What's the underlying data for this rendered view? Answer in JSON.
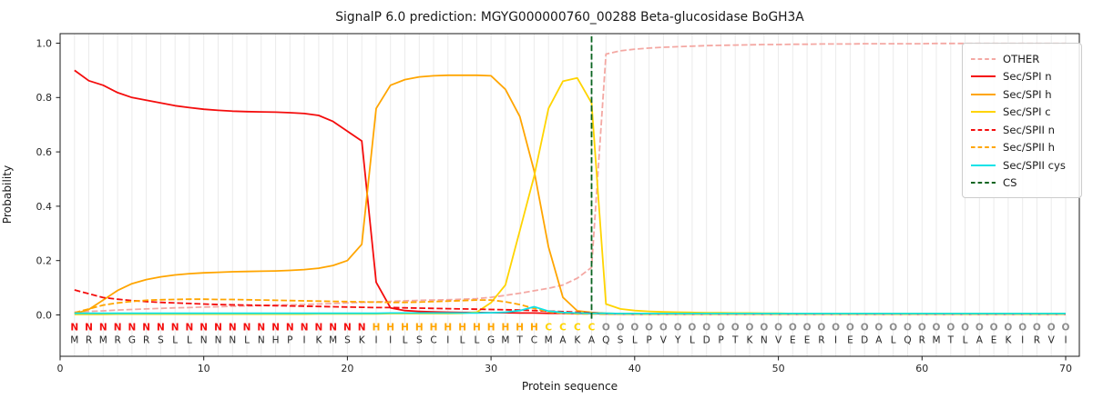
{
  "chart_data": {
    "type": "line",
    "title": "SignalP 6.0 prediction: MGYG000000760_00288 Beta-glucosidase BoGH3A",
    "xlabel": "Protein sequence",
    "ylabel": "Probability",
    "xticks": [
      0,
      10,
      20,
      30,
      40,
      50,
      60,
      70
    ],
    "ytick_labels": [
      "0.0",
      "0.2",
      "0.4",
      "0.6",
      "0.8",
      "1.0"
    ],
    "ytick_values": [
      0.0,
      0.2,
      0.4,
      0.6,
      0.8,
      1.0
    ],
    "xlim": [
      0,
      71
    ],
    "ylim": [
      -0.15,
      1.03
    ],
    "grid": "vertical-per-residue",
    "legend_position": "upper right",
    "x": "positions 1-70",
    "series": [
      {
        "name": "OTHER",
        "color": "#f4a8a3",
        "dash": "dashed",
        "values": [
          0.01,
          0.013,
          0.015,
          0.018,
          0.02,
          0.022,
          0.024,
          0.026,
          0.027,
          0.029,
          0.03,
          0.032,
          0.033,
          0.034,
          0.036,
          0.037,
          0.038,
          0.04,
          0.042,
          0.044,
          0.046,
          0.048,
          0.05,
          0.052,
          0.054,
          0.055,
          0.056,
          0.058,
          0.06,
          0.065,
          0.072,
          0.08,
          0.089,
          0.098,
          0.11,
          0.135,
          0.175,
          0.96,
          0.972,
          0.978,
          0.982,
          0.985,
          0.987,
          0.989,
          0.991,
          0.992,
          0.993,
          0.994,
          0.995,
          0.995,
          0.996,
          0.996,
          0.997,
          0.997,
          0.997,
          0.998,
          0.998,
          0.998,
          0.998,
          0.998,
          0.999,
          0.999,
          0.999,
          0.999,
          0.999,
          0.999,
          0.999,
          0.999,
          0.999,
          0.999
        ]
      },
      {
        "name": "Sec/SPI n",
        "color": "#f40d0d",
        "dash": "solid",
        "values": [
          0.9,
          0.862,
          0.845,
          0.818,
          0.8,
          0.79,
          0.78,
          0.77,
          0.763,
          0.757,
          0.753,
          0.75,
          0.748,
          0.747,
          0.746,
          0.744,
          0.741,
          0.734,
          0.712,
          0.676,
          0.64,
          0.12,
          0.026,
          0.016,
          0.013,
          0.011,
          0.01,
          0.009,
          0.009,
          0.008,
          0.008,
          0.007,
          0.007,
          0.006,
          0.006,
          0.005,
          0.005,
          0.004,
          0.004,
          0.003,
          0.003,
          0.003,
          0.003,
          0.003,
          0.003,
          0.003,
          0.003,
          0.003,
          0.003,
          0.003,
          0.003,
          0.003,
          0.003,
          0.003,
          0.003,
          0.003,
          0.003,
          0.003,
          0.003,
          0.003,
          0.003,
          0.003,
          0.003,
          0.003,
          0.003,
          0.003,
          0.003,
          0.003,
          0.003,
          0.003
        ]
      },
      {
        "name": "Sec/SPI h",
        "color": "#ffa500",
        "dash": "solid",
        "values": [
          0.004,
          0.02,
          0.055,
          0.09,
          0.115,
          0.13,
          0.14,
          0.147,
          0.152,
          0.155,
          0.157,
          0.159,
          0.16,
          0.161,
          0.162,
          0.164,
          0.167,
          0.172,
          0.182,
          0.2,
          0.26,
          0.76,
          0.845,
          0.866,
          0.876,
          0.88,
          0.882,
          0.882,
          0.882,
          0.88,
          0.83,
          0.73,
          0.53,
          0.25,
          0.065,
          0.015,
          0.009,
          0.006,
          0.005,
          0.005,
          0.004,
          0.004,
          0.004,
          0.004,
          0.004,
          0.004,
          0.004,
          0.004,
          0.004,
          0.004,
          0.004,
          0.004,
          0.004,
          0.004,
          0.004,
          0.004,
          0.004,
          0.004,
          0.004,
          0.004,
          0.004,
          0.004,
          0.004,
          0.004,
          0.004,
          0.004,
          0.004,
          0.004,
          0.004,
          0.004
        ]
      },
      {
        "name": "Sec/SPI c",
        "color": "#ffd400",
        "dash": "solid",
        "values": [
          0.002,
          0.002,
          0.002,
          0.003,
          0.003,
          0.003,
          0.003,
          0.003,
          0.003,
          0.003,
          0.003,
          0.003,
          0.003,
          0.003,
          0.003,
          0.003,
          0.003,
          0.004,
          0.004,
          0.004,
          0.004,
          0.004,
          0.005,
          0.005,
          0.005,
          0.005,
          0.005,
          0.006,
          0.01,
          0.045,
          0.11,
          0.31,
          0.51,
          0.76,
          0.86,
          0.872,
          0.78,
          0.04,
          0.022,
          0.016,
          0.013,
          0.011,
          0.01,
          0.009,
          0.008,
          0.008,
          0.007,
          0.007,
          0.006,
          0.006,
          0.005,
          0.005,
          0.005,
          0.005,
          0.005,
          0.005,
          0.005,
          0.005,
          0.005,
          0.005,
          0.005,
          0.005,
          0.005,
          0.005,
          0.005,
          0.005,
          0.005,
          0.005,
          0.005,
          0.005
        ]
      },
      {
        "name": "Sec/SPII n",
        "color": "#f40d0d",
        "dash": "dashed",
        "values": [
          0.092,
          0.078,
          0.064,
          0.058,
          0.053,
          0.049,
          0.046,
          0.044,
          0.042,
          0.04,
          0.038,
          0.037,
          0.036,
          0.035,
          0.034,
          0.033,
          0.032,
          0.031,
          0.03,
          0.029,
          0.028,
          0.027,
          0.027,
          0.026,
          0.025,
          0.024,
          0.023,
          0.022,
          0.021,
          0.02,
          0.019,
          0.018,
          0.016,
          0.014,
          0.012,
          0.01,
          0.008,
          0.005,
          0.004,
          0.004,
          0.003,
          0.003,
          0.003,
          0.003,
          0.003,
          0.003,
          0.003,
          0.003,
          0.003,
          0.003,
          0.003,
          0.003,
          0.003,
          0.003,
          0.003,
          0.003,
          0.003,
          0.003,
          0.003,
          0.003,
          0.003,
          0.003,
          0.003,
          0.003,
          0.003,
          0.003,
          0.003,
          0.003,
          0.003,
          0.003
        ]
      },
      {
        "name": "Sec/SPII h",
        "color": "#ffa500",
        "dash": "dashed",
        "values": [
          0.008,
          0.022,
          0.036,
          0.044,
          0.05,
          0.054,
          0.056,
          0.057,
          0.058,
          0.058,
          0.057,
          0.057,
          0.056,
          0.055,
          0.054,
          0.053,
          0.052,
          0.051,
          0.05,
          0.049,
          0.048,
          0.047,
          0.046,
          0.046,
          0.047,
          0.049,
          0.051,
          0.053,
          0.055,
          0.055,
          0.048,
          0.038,
          0.024,
          0.011,
          0.006,
          0.004,
          0.004,
          0.003,
          0.003,
          0.003,
          0.003,
          0.003,
          0.003,
          0.003,
          0.003,
          0.003,
          0.003,
          0.003,
          0.003,
          0.003,
          0.003,
          0.003,
          0.003,
          0.003,
          0.003,
          0.003,
          0.003,
          0.003,
          0.003,
          0.003,
          0.003,
          0.003,
          0.003,
          0.003,
          0.003,
          0.003,
          0.003,
          0.003,
          0.003,
          0.003
        ]
      },
      {
        "name": "Sec/SPII cys",
        "color": "#0de3e8",
        "dash": "solid",
        "values": [
          0.006,
          0.006,
          0.006,
          0.006,
          0.006,
          0.006,
          0.006,
          0.006,
          0.006,
          0.006,
          0.006,
          0.006,
          0.006,
          0.006,
          0.006,
          0.006,
          0.006,
          0.006,
          0.006,
          0.006,
          0.006,
          0.006,
          0.007,
          0.007,
          0.007,
          0.007,
          0.007,
          0.007,
          0.007,
          0.008,
          0.01,
          0.016,
          0.03,
          0.014,
          0.009,
          0.007,
          0.006,
          0.006,
          0.005,
          0.005,
          0.005,
          0.005,
          0.005,
          0.005,
          0.005,
          0.005,
          0.005,
          0.005,
          0.005,
          0.005,
          0.005,
          0.005,
          0.005,
          0.005,
          0.005,
          0.005,
          0.005,
          0.005,
          0.005,
          0.005,
          0.005,
          0.005,
          0.005,
          0.005,
          0.005,
          0.005,
          0.005,
          0.005,
          0.005,
          0.005
        ]
      }
    ],
    "cs_line": {
      "name": "CS",
      "x": 37,
      "color": "#0a6420",
      "dash": "dashed"
    },
    "sequence": "MRMRGRSLLNNNLNHPIKMSKIILSCILLGMTCMAKAQSLPVYLDPTKNVEERIEDALQRMTLAEKIRVI",
    "regions": "NNNNNNNNNNNNNNNNNNNNNHHHHHHHHHHHHCCCCOOOOOOOOOOOOOOOOOOOOOOOOOOOOOOOOO",
    "region_colors": {
      "N": "#f40d0d",
      "H": "#ffa500",
      "C": "#ffd400",
      "O": "#8c8c8c"
    },
    "sequence_color": "#262626",
    "colors": {
      "grid": "#ebebeb",
      "spine": "#1a1a1a",
      "tick_label": "#262626"
    }
  }
}
